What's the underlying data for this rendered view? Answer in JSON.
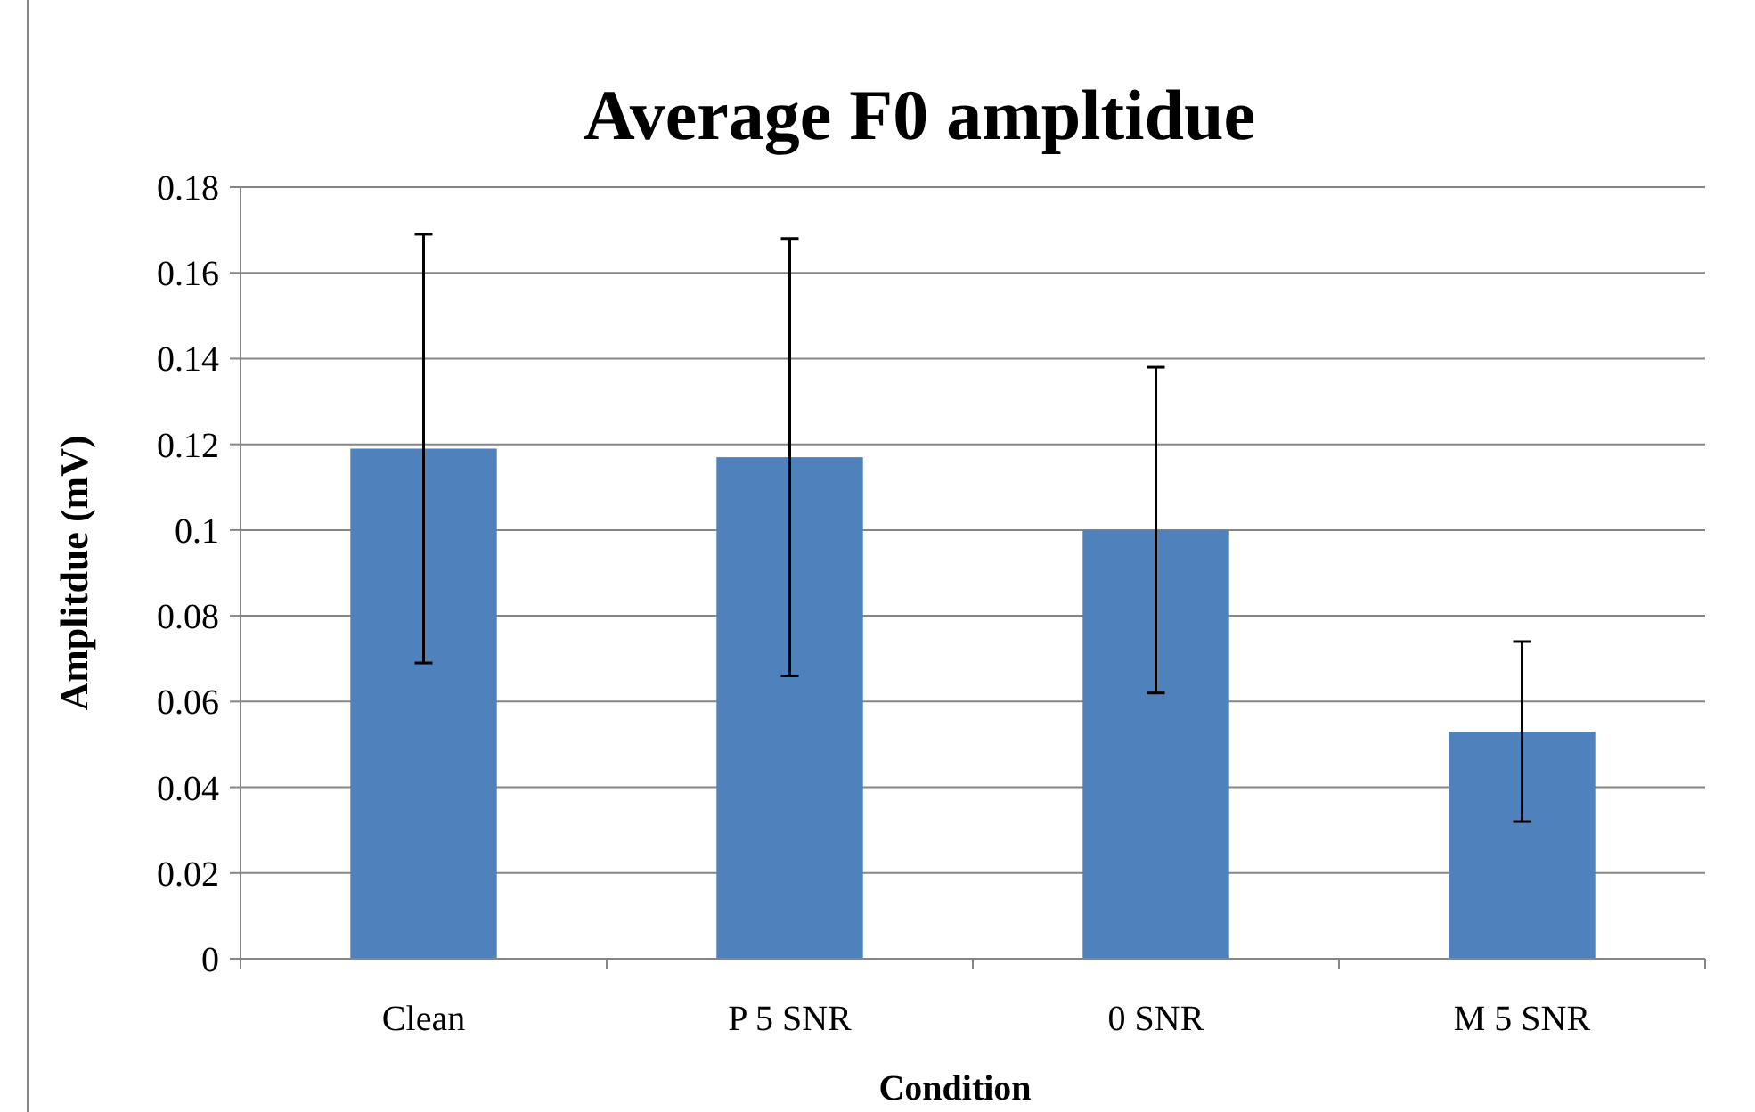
{
  "chart_data": {
    "type": "bar",
    "title": "Average F0 ampltidue",
    "xlabel": "Condition",
    "ylabel": "Amplitdue (mV)",
    "categories": [
      "Clean",
      "P 5 SNR",
      "0 SNR",
      "M 5 SNR"
    ],
    "values": [
      0.119,
      0.117,
      0.1,
      0.053
    ],
    "errors": [
      0.05,
      0.051,
      0.038,
      0.021
    ],
    "color": "#4f81bd",
    "ylim": [
      0,
      0.18
    ],
    "yticks": [
      0,
      0.02,
      0.04,
      0.06,
      0.08,
      0.1,
      0.12,
      0.14,
      0.16,
      0.18
    ],
    "grid": "y"
  }
}
